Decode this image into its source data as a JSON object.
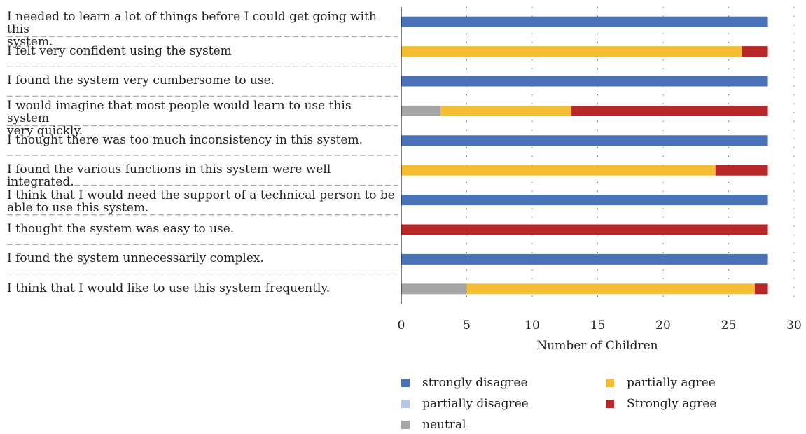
{
  "chart_data": {
    "type": "bar",
    "orientation": "horizontal",
    "stacked": true,
    "title": "",
    "xlabel": "Number of Children",
    "ylabel": "",
    "xlim": [
      0,
      30
    ],
    "xticks": [
      0,
      5,
      10,
      15,
      20,
      25,
      30
    ],
    "grid": "vertical dotted",
    "legend_position": "bottom",
    "categories": [
      "I needed to learn a lot of things before I could get going with this system.",
      "I felt very confident using the system",
      "I found the system very cumbersome to use.",
      "I would imagine that most people would learn to use this system very quickly.",
      "I thought there was too much inconsistency in this system.",
      "I found the various functions in this system were well integrated.",
      "I think that I would need the support of a technical person to be able to use this system.",
      "I thought the system was easy to use.",
      "I found the system unnecessarily complex.",
      "I think that I would like to use this system frequently."
    ],
    "category_lines": [
      [
        "I needed to learn a lot of things before I could get going with this",
        "system."
      ],
      [
        "I felt very confident using the system"
      ],
      [
        "I found the system very cumbersome to use."
      ],
      [
        "I would imagine that most people would learn to use this system",
        "very quickly."
      ],
      [
        "I thought there was too much inconsistency in this system."
      ],
      [
        "I found the various functions in this system were well integrated."
      ],
      [
        "I think that I would need the support of a technical person to be",
        "able to use this system."
      ],
      [
        "I thought the system was easy to use."
      ],
      [
        "I found the system unnecessarily complex."
      ],
      [
        "I think that I would like to use this system frequently."
      ]
    ],
    "series": [
      {
        "name": "strongly disagree",
        "color": "#4a72b8",
        "values": [
          28,
          0,
          28,
          0,
          28,
          0,
          28,
          0,
          28,
          0
        ]
      },
      {
        "name": "partially disagree",
        "color": "#b4c7e7",
        "values": [
          0,
          0,
          0,
          0,
          0,
          0,
          0,
          0,
          0,
          0
        ]
      },
      {
        "name": "neutral",
        "color": "#a5a5a5",
        "values": [
          0,
          0,
          0,
          3,
          0,
          0,
          0,
          0,
          0,
          5
        ]
      },
      {
        "name": "partially agree",
        "color": "#f5bd33",
        "values": [
          0,
          26,
          0,
          10,
          0,
          24,
          0,
          0,
          0,
          22
        ]
      },
      {
        "name": "Strongly agree",
        "color": "#b82828",
        "values": [
          0,
          2,
          0,
          15,
          0,
          4,
          0,
          28,
          0,
          1
        ]
      }
    ]
  }
}
